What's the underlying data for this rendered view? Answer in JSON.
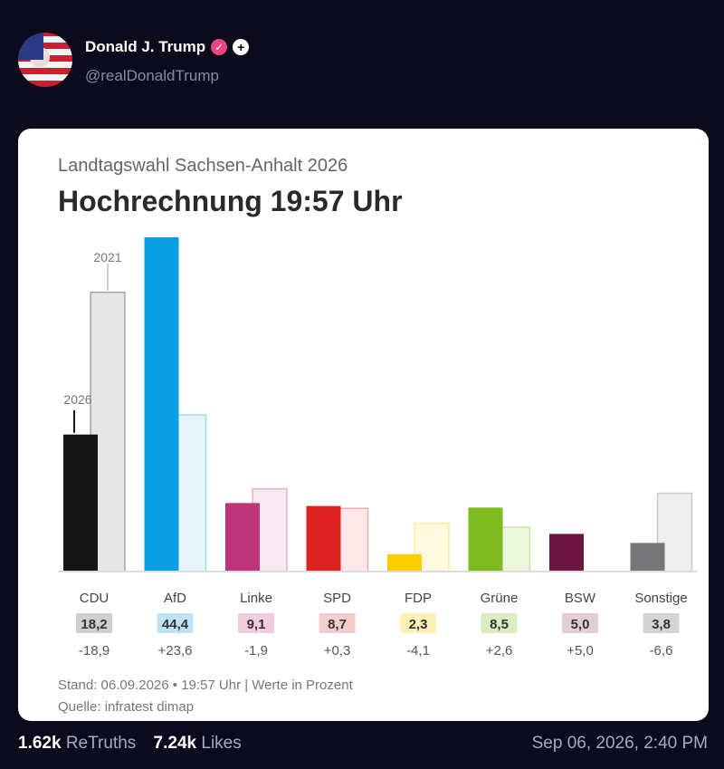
{
  "post": {
    "author_name": "Donald J. Trump",
    "handle": "@realDonaldTrump",
    "verified_icon": "verified-badge-icon",
    "plus_icon": "plus-icon",
    "stats": {
      "retruths_count": "1.62k",
      "retruths_label": "ReTruths",
      "likes_count": "7.24k",
      "likes_label": "Likes"
    },
    "timestamp": "Sep 06, 2026, 2:40 PM"
  },
  "card": {
    "subtitle": "Landtagswahl Sachsen-Anhalt 2026",
    "title": "Hochrechnung 19:57 Uhr",
    "footer_stand": "Stand: 06.09.2026 • 19:57 Uhr | Werte in Prozent",
    "footer_source": "Quelle: infratest dimap"
  },
  "chart_data": {
    "type": "bar",
    "annotations": [
      "2021",
      "2026"
    ],
    "categories": [
      "CDU",
      "AfD",
      "Linke",
      "SPD",
      "FDP",
      "Grüne",
      "BSW",
      "Sonstige"
    ],
    "series": [
      {
        "name": "2026",
        "values": [
          18.2,
          44.4,
          9.1,
          8.7,
          2.3,
          8.5,
          5.0,
          3.8
        ]
      },
      {
        "name": "2021",
        "values": [
          37.1,
          20.8,
          11.0,
          8.4,
          6.4,
          5.9,
          0.0,
          10.4
        ]
      }
    ],
    "value_labels": [
      "18,2",
      "44,4",
      "9,1",
      "8,7",
      "2,3",
      "8,5",
      "5,0",
      "3,8"
    ],
    "diff_labels": [
      "-18,9",
      "+23,6",
      "-1,9",
      "+0,3",
      "-4,1",
      "+2,6",
      "+5,0",
      "-6,6"
    ],
    "colors": [
      "#151515",
      "#0a9ee2",
      "#bf3479",
      "#dc2222",
      "#ffcc00",
      "#7fbb1e",
      "#6b1640",
      "#77777a"
    ],
    "light_colors": [
      "#e6e6e6",
      "#e6f5fc",
      "#f8e8f0",
      "#fce8e8",
      "#fff9e0",
      "#ecf6dd",
      "#f4ecf0",
      "#efefef"
    ],
    "label_bg": [
      "#cfcfcf",
      "#bfe3f5",
      "#f0cde0",
      "#f5cdcd",
      "#fff0b8",
      "#d9eec0",
      "#e3cdd8",
      "#d5d5d5"
    ],
    "ylim": [
      0,
      45
    ]
  }
}
